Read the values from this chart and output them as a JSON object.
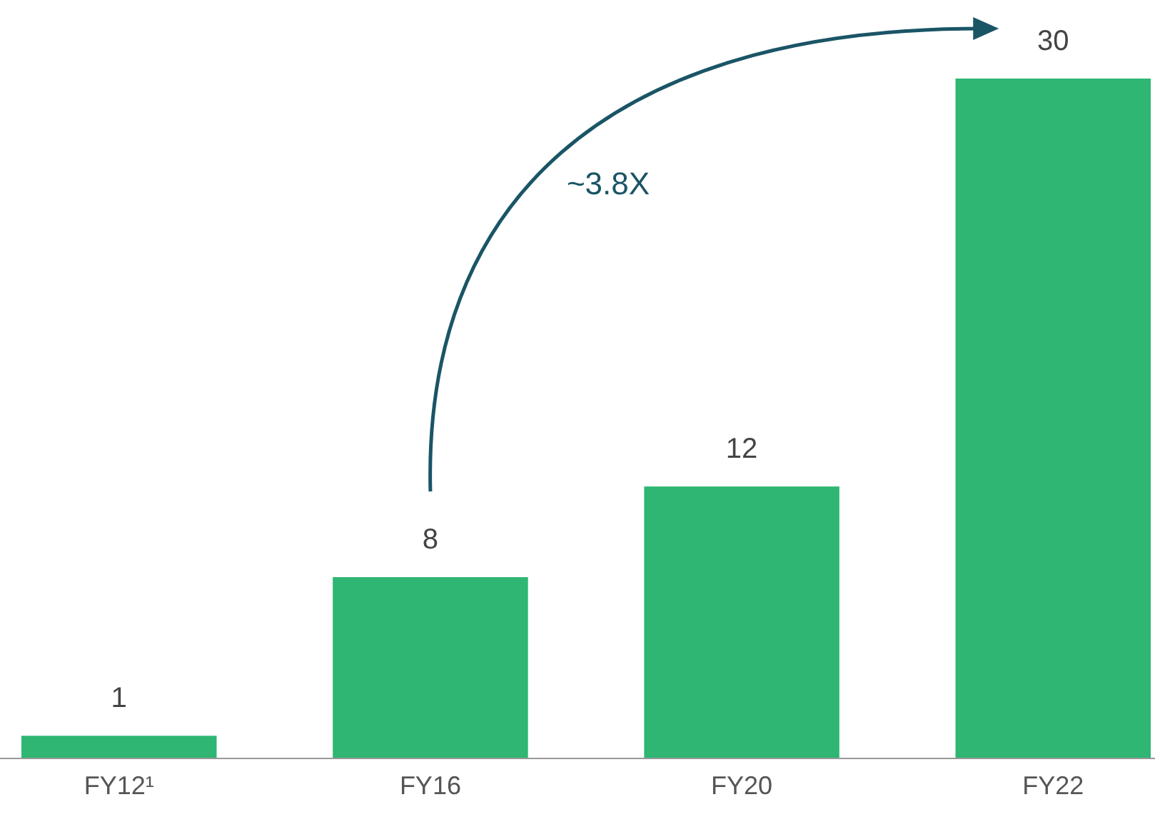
{
  "chart_data": {
    "type": "bar",
    "categories": [
      "FY12¹",
      "FY16",
      "FY20",
      "FY22"
    ],
    "values": [
      1,
      8,
      12,
      30
    ],
    "color": "#2eb672",
    "data_labels": true,
    "annotations": [
      "~3.8X"
    ]
  }
}
